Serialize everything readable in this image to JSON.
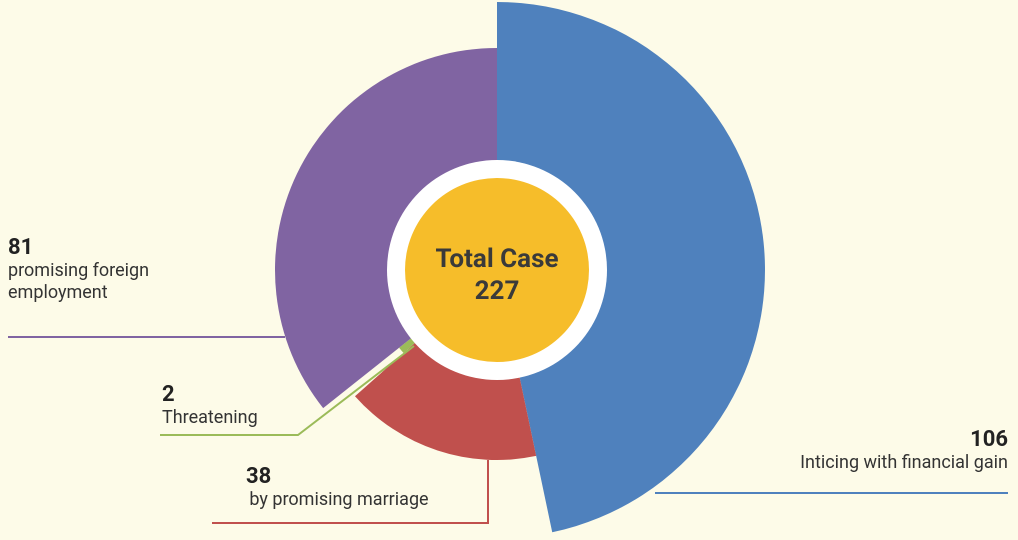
{
  "chart_data": {
    "type": "pie",
    "center_label": "Total Case",
    "total": 227,
    "categories": [
      "Inticing with financial gain",
      "by promising marriage",
      "Threatening",
      "promising foreign employment"
    ],
    "values": [
      106,
      38,
      2,
      81
    ],
    "colors": [
      "#4f81bd",
      "#c0504d",
      "#9bbb59",
      "#8064a2"
    ]
  }
}
